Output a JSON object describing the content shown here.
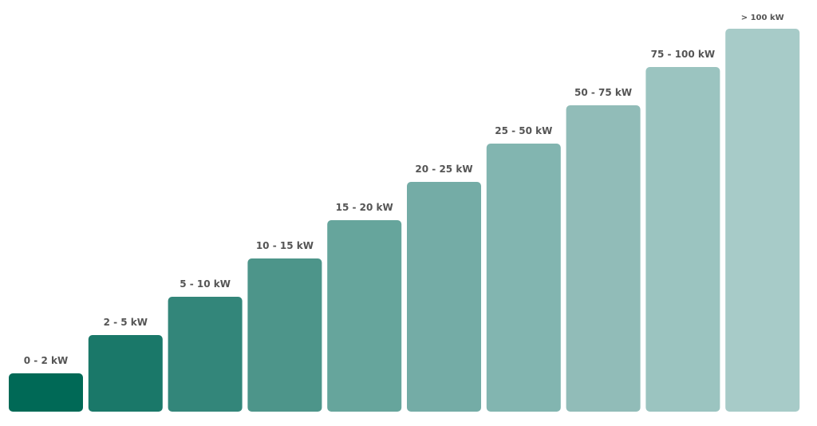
{
  "chart_data": {
    "type": "bar",
    "categories": [
      "0 - 2 kW",
      "2 - 5 kW",
      "5 - 10 kW",
      "10 - 15 kW",
      "15 - 20 kW",
      "20 - 25 kW",
      "25 - 50 kW",
      "50 - 75 kW",
      "75 - 100 kW",
      "> 100 kW"
    ],
    "values": [
      1,
      2,
      3,
      4,
      5,
      6,
      7,
      8,
      9,
      10
    ],
    "value_note_hidden": true,
    "ylim": [
      0,
      10
    ],
    "grid": false,
    "legend": "none",
    "colors": [
      "#006956",
      "#1a7869",
      "#33867a",
      "#4d958a",
      "#66a59c",
      "#74aca6",
      "#82b5b0",
      "#91bcb8",
      "#9bc4c0",
      "#a7cbc8"
    ]
  }
}
